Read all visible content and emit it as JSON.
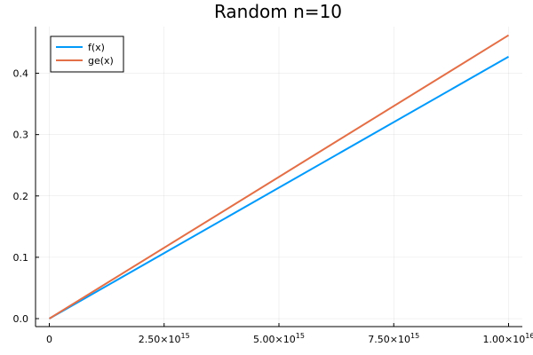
{
  "chart_data": {
    "type": "line",
    "title": "Random n=10",
    "xlabel": "",
    "ylabel": "",
    "xlim": [
      -300000000000000.0,
      1.03e+16
    ],
    "ylim": [
      -0.013,
      0.476
    ],
    "grid": true,
    "legend_position": "top-left",
    "x": [
      0,
      1e+16
    ],
    "series": [
      {
        "name": "f(x)",
        "color": "#009AFA",
        "values": [
          0,
          0.427
        ]
      },
      {
        "name": "ge(x)",
        "color": "#E36F47",
        "values": [
          0,
          0.462
        ]
      }
    ],
    "y_ticks": [
      {
        "value": 0.0,
        "label": "0.0"
      },
      {
        "value": 0.1,
        "label": "0.1"
      },
      {
        "value": 0.2,
        "label": "0.2"
      },
      {
        "value": 0.3,
        "label": "0.3"
      },
      {
        "value": 0.4,
        "label": "0.4"
      }
    ],
    "x_ticks": [
      {
        "value": 0,
        "label": "0",
        "exp": ""
      },
      {
        "value": 2500000000000000.0,
        "label": "2.50×10",
        "exp": "15"
      },
      {
        "value": 5000000000000000.0,
        "label": "5.00×10",
        "exp": "15"
      },
      {
        "value": 7500000000000000.0,
        "label": "7.50×10",
        "exp": "15"
      },
      {
        "value": 1e+16,
        "label": "1.00×10",
        "exp": "16"
      }
    ]
  }
}
